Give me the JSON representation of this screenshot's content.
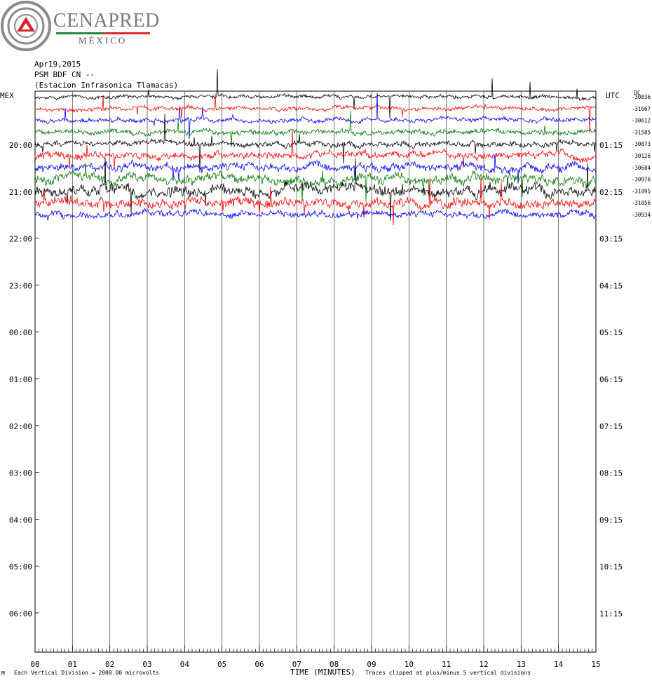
{
  "logo": {
    "brand": "CENAPRED",
    "country": "MÉXICO"
  },
  "header": {
    "date": "Apr19,2015",
    "station_code": "PSM BDF CN --",
    "station_name": "(Estacion Infrasonica Tlamacas)"
  },
  "labels": {
    "left_tz": "MEX",
    "right_tz": "UTC",
    "dc": "DC"
  },
  "footer": {
    "corner_mark": "M",
    "scale_note": "Each Vertical Division = 2000.00 microvolts",
    "xlabel": "TIME (MINUTES)",
    "clip_note": "Traces clipped at plus/minus 5 vertical divisions"
  },
  "colors": {
    "black": "#000000",
    "red": "#ff0000",
    "blue": "#0000ff",
    "green": "#007700",
    "grid": "#555555"
  },
  "chart_data": {
    "type": "line",
    "title": "",
    "xlabel": "TIME (MINUTES)",
    "ylabel": "",
    "xlim": [
      0,
      15
    ],
    "x_ticks": [
      "00",
      "01",
      "02",
      "03",
      "04",
      "05",
      "06",
      "07",
      "08",
      "09",
      "10",
      "11",
      "12",
      "13",
      "14",
      "15"
    ],
    "left_time_labels": [
      "20:00",
      "21:00",
      "22:00",
      "23:00",
      "00:00",
      "01:00",
      "02:00",
      "03:00",
      "04:00",
      "05:00",
      "06:00"
    ],
    "right_time_labels": [
      "01:15",
      "02:15",
      "03:15",
      "04:15",
      "05:15",
      "06:15",
      "07:15",
      "08:15",
      "09:15",
      "10:15",
      "11:15"
    ],
    "grid": true,
    "legend": "none",
    "traces": [
      {
        "color": "black",
        "dc": "-30836",
        "activity": 1.0
      },
      {
        "color": "red",
        "dc": "-31667",
        "activity": 1.1
      },
      {
        "color": "blue",
        "dc": "-30612",
        "activity": 1.2
      },
      {
        "color": "green",
        "dc": "-31585",
        "activity": 1.4
      },
      {
        "color": "black",
        "dc": "-30873",
        "activity": 1.6
      },
      {
        "color": "red",
        "dc": "-30126",
        "activity": 1.9
      },
      {
        "color": "blue",
        "dc": "-30684",
        "activity": 2.2
      },
      {
        "color": "green",
        "dc": "-30976",
        "activity": 2.6
      },
      {
        "color": "black",
        "dc": "-31095",
        "activity": 3.0
      },
      {
        "color": "red",
        "dc": "-31056",
        "activity": 2.6
      },
      {
        "color": "blue",
        "dc": "-30934",
        "activity": 1.8
      }
    ]
  }
}
